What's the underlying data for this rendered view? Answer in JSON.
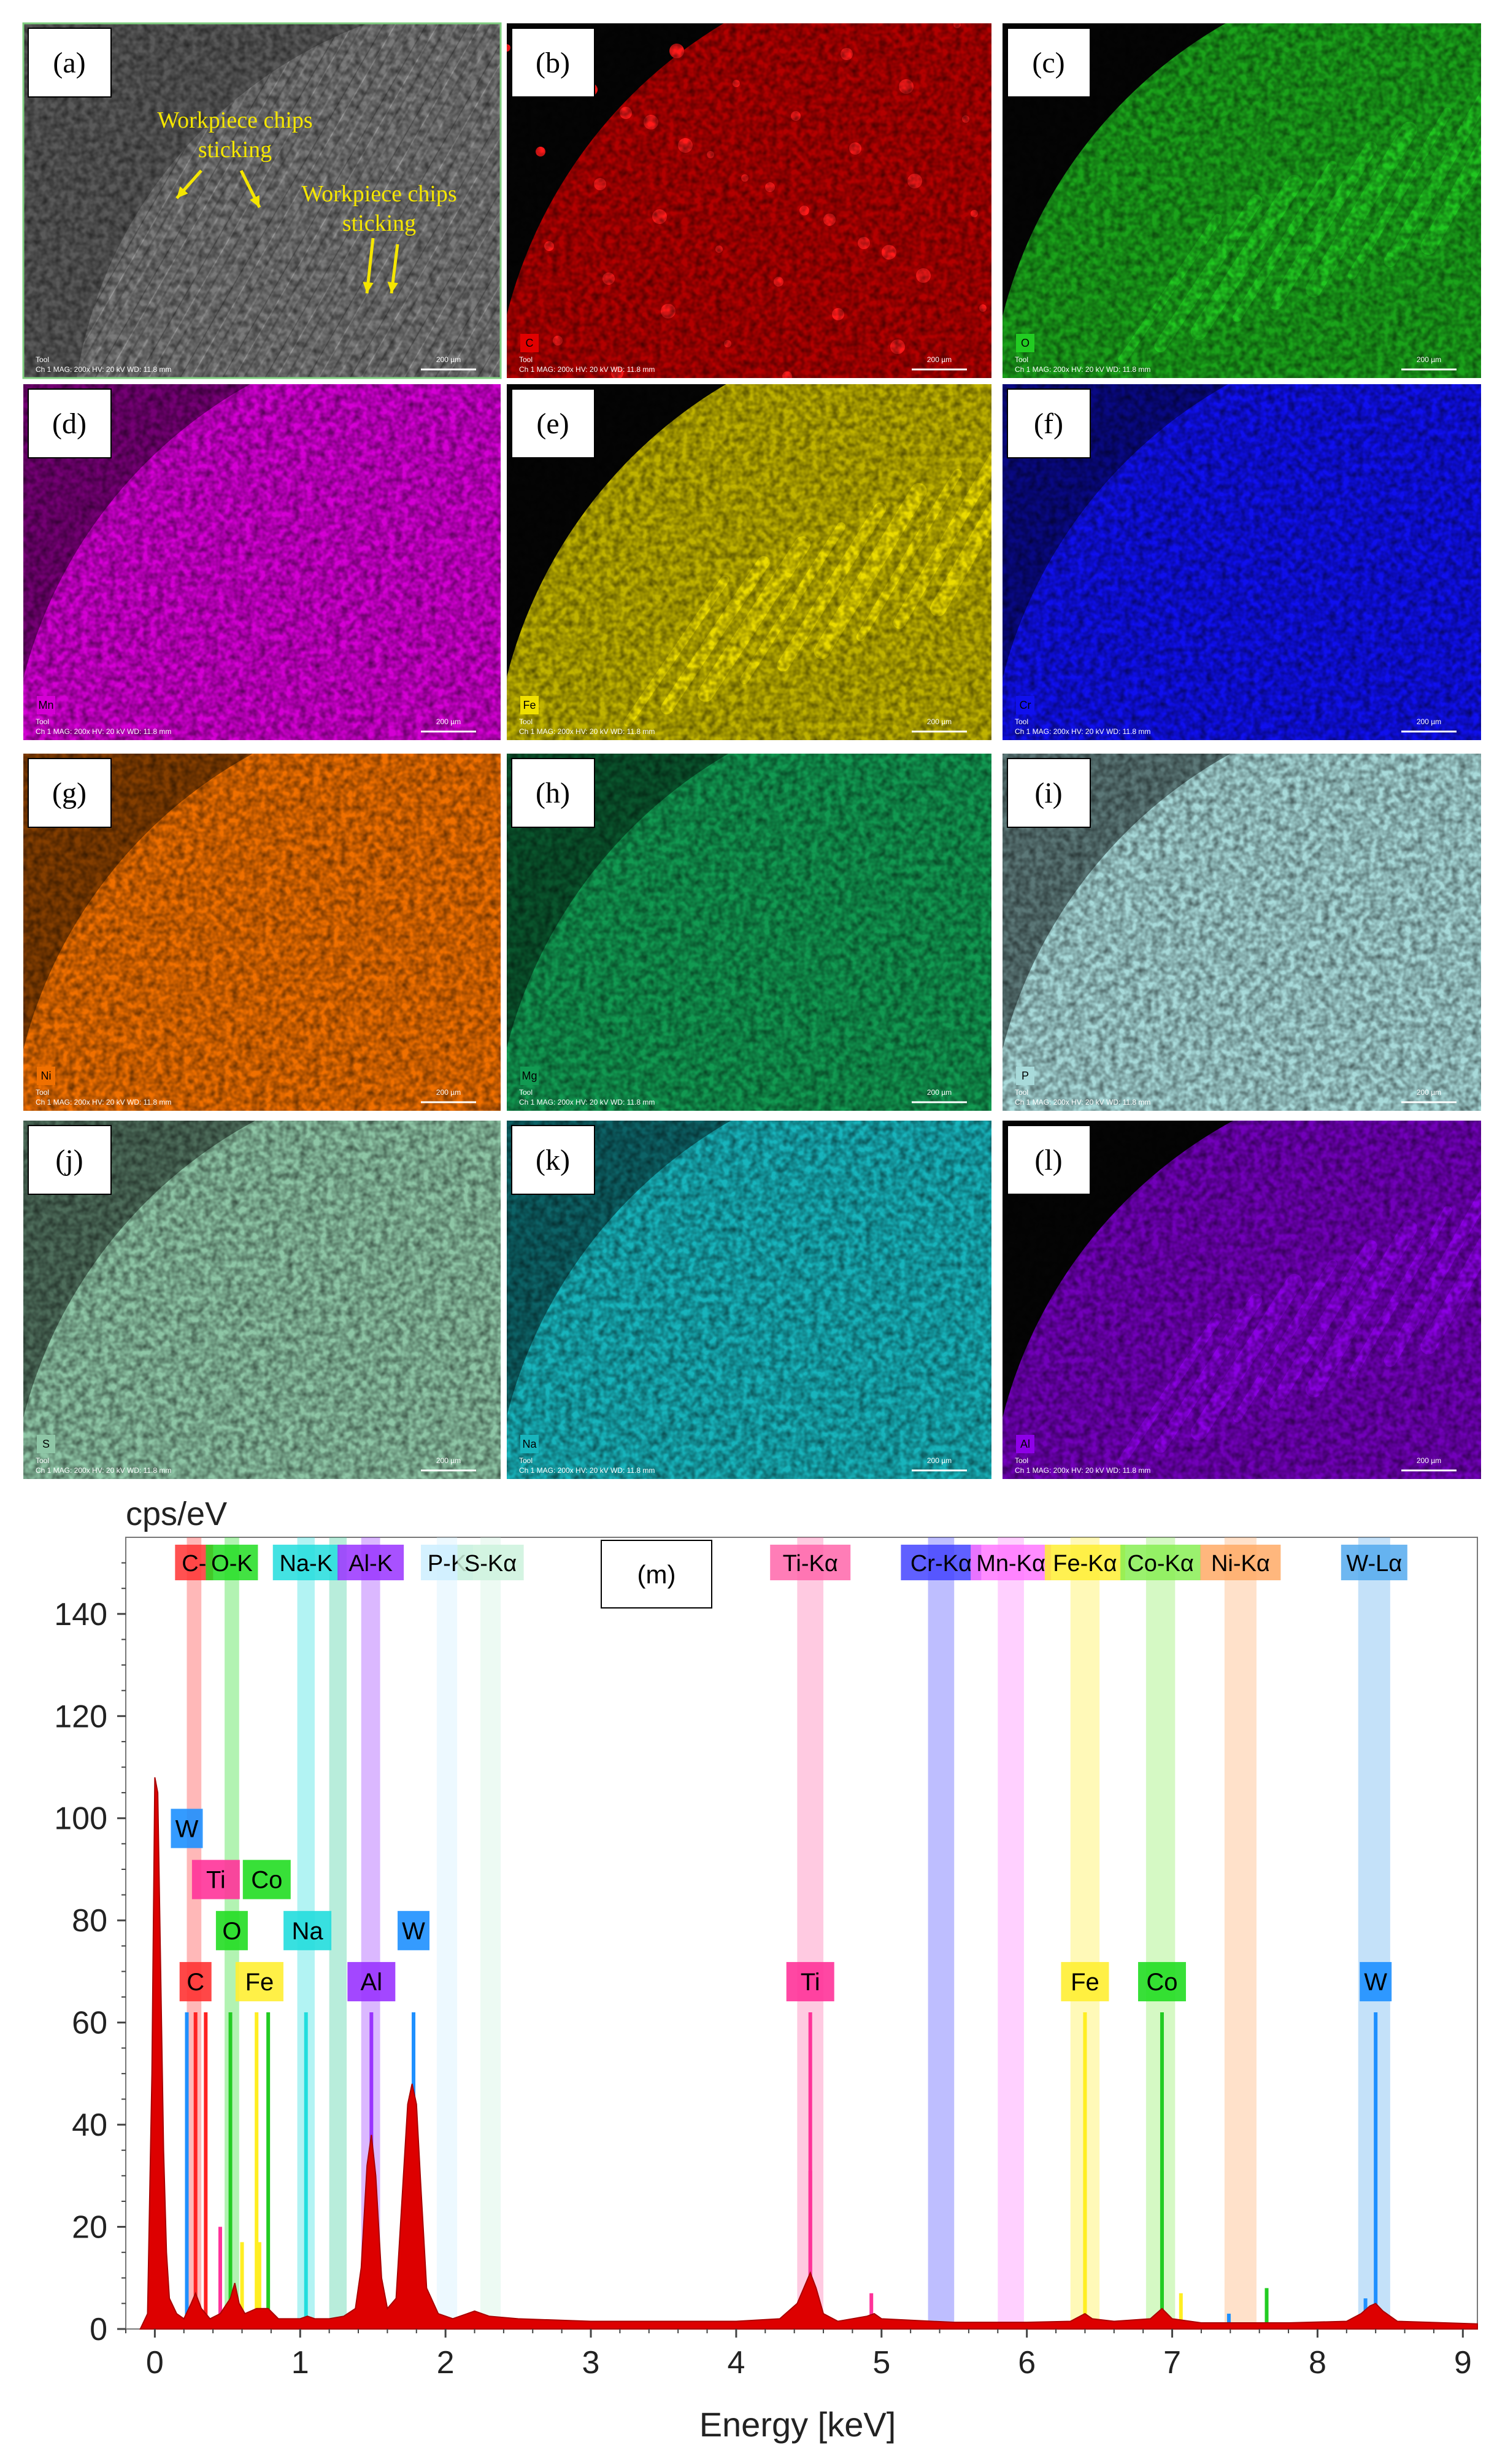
{
  "panels": [
    {
      "id": "a",
      "label": "(a)",
      "element": "",
      "base": "#6d6d6d",
      "annotations": [
        "Workpiece chips",
        "sticking",
        "Workpiece chips",
        "sticking"
      ]
    },
    {
      "id": "b",
      "label": "(b)",
      "element": "C",
      "base": "#e00000"
    },
    {
      "id": "c",
      "label": "(c)",
      "element": "O",
      "base": "#22cc22"
    },
    {
      "id": "d",
      "label": "(d)",
      "element": "Mn",
      "base": "#d400d4"
    },
    {
      "id": "e",
      "label": "(e)",
      "element": "Fe",
      "base": "#f0e000"
    },
    {
      "id": "f",
      "label": "(f)",
      "element": "Cr",
      "base": "#1010ee"
    },
    {
      "id": "g",
      "label": "(g)",
      "element": "Ni",
      "base": "#f07000"
    },
    {
      "id": "h",
      "label": "(h)",
      "element": "Mg",
      "base": "#129a52"
    },
    {
      "id": "i",
      "label": "(i)",
      "element": "P",
      "base": "#a8dada"
    },
    {
      "id": "j",
      "label": "(j)",
      "element": "S",
      "base": "#8ec6a6"
    },
    {
      "id": "k",
      "label": "(k)",
      "element": "Na",
      "base": "#18b4bc"
    },
    {
      "id": "l",
      "label": "(l)",
      "element": "Al",
      "base": "#8e00e8"
    }
  ],
  "map_footer": {
    "tool": "Tool",
    "info": "Ch 1    MAG: 200x    HV: 20 kV    WD: 11.8 mm",
    "scale": "200 µm"
  },
  "chart_data": {
    "type": "line",
    "panel_label": "(m)",
    "ylabel": "cps/eV",
    "xlabel": "Energy [keV]",
    "xlim": [
      -0.2,
      9.1
    ],
    "ylim": [
      0,
      155
    ],
    "xticks": [
      0,
      1,
      2,
      3,
      4,
      5,
      6,
      7,
      8,
      9
    ],
    "yticks": [
      0,
      20,
      40,
      60,
      80,
      100,
      120,
      140
    ],
    "spectrum": [
      [
        -0.1,
        0
      ],
      [
        -0.05,
        3
      ],
      [
        -0.02,
        50
      ],
      [
        0,
        108
      ],
      [
        0.02,
        105
      ],
      [
        0.04,
        70
      ],
      [
        0.06,
        35
      ],
      [
        0.08,
        15
      ],
      [
        0.1,
        6
      ],
      [
        0.15,
        3
      ],
      [
        0.2,
        2
      ],
      [
        0.25,
        5
      ],
      [
        0.28,
        7
      ],
      [
        0.32,
        4
      ],
      [
        0.38,
        2
      ],
      [
        0.45,
        3
      ],
      [
        0.52,
        6
      ],
      [
        0.55,
        9
      ],
      [
        0.58,
        5
      ],
      [
        0.62,
        3
      ],
      [
        0.7,
        4
      ],
      [
        0.78,
        4
      ],
      [
        0.85,
        2
      ],
      [
        1.0,
        2
      ],
      [
        1.05,
        2.5
      ],
      [
        1.1,
        2
      ],
      [
        1.2,
        2
      ],
      [
        1.3,
        2.5
      ],
      [
        1.38,
        4
      ],
      [
        1.42,
        12
      ],
      [
        1.46,
        32
      ],
      [
        1.49,
        38
      ],
      [
        1.52,
        30
      ],
      [
        1.56,
        10
      ],
      [
        1.6,
        4
      ],
      [
        1.66,
        6
      ],
      [
        1.7,
        25
      ],
      [
        1.74,
        44
      ],
      [
        1.77,
        48
      ],
      [
        1.8,
        44
      ],
      [
        1.83,
        28
      ],
      [
        1.87,
        8
      ],
      [
        1.95,
        3
      ],
      [
        2.05,
        2
      ],
      [
        2.15,
        3
      ],
      [
        2.2,
        3.5
      ],
      [
        2.3,
        2.5
      ],
      [
        2.5,
        2
      ],
      [
        3,
        1.5
      ],
      [
        3.5,
        1.5
      ],
      [
        4,
        1.5
      ],
      [
        4.3,
        2
      ],
      [
        4.42,
        5
      ],
      [
        4.48,
        9
      ],
      [
        4.51,
        11
      ],
      [
        4.55,
        8
      ],
      [
        4.6,
        3
      ],
      [
        4.7,
        1.5
      ],
      [
        4.9,
        2.5
      ],
      [
        4.95,
        3
      ],
      [
        5,
        2
      ],
      [
        5.5,
        1.3
      ],
      [
        6,
        1.3
      ],
      [
        6.3,
        1.5
      ],
      [
        6.4,
        3
      ],
      [
        6.45,
        2
      ],
      [
        6.6,
        1.5
      ],
      [
        6.85,
        2
      ],
      [
        6.93,
        4
      ],
      [
        7.0,
        2
      ],
      [
        7.2,
        1.2
      ],
      [
        7.8,
        1.2
      ],
      [
        8.2,
        1.5
      ],
      [
        8.3,
        3
      ],
      [
        8.36,
        4.5
      ],
      [
        8.4,
        5
      ],
      [
        8.45,
        3.5
      ],
      [
        8.55,
        1.5
      ],
      [
        9.1,
        1
      ]
    ],
    "element_bands": [
      {
        "label": "C-",
        "x0": 0.22,
        "x1": 0.32,
        "color": "#ff3333"
      },
      {
        "label": "O-K",
        "x0": 0.48,
        "x1": 0.58,
        "color": "#22dd22"
      },
      {
        "label": "Na-K",
        "x0": 0.98,
        "x1": 1.1,
        "color": "#22dddd"
      },
      {
        "label": "",
        "x0": 1.2,
        "x1": 1.32,
        "color": "#33cc99"
      },
      {
        "label": "Al-K",
        "x0": 1.42,
        "x1": 1.55,
        "color": "#9933ff"
      },
      {
        "label": "P-K",
        "x0": 1.94,
        "x1": 2.08,
        "color": "#cceeff"
      },
      {
        "label": "S-Kα",
        "x0": 2.24,
        "x1": 2.38,
        "color": "#ccf2dd"
      },
      {
        "label": "Ti-Kα",
        "x0": 4.42,
        "x1": 4.6,
        "color": "#ff66aa"
      },
      {
        "label": "Cr-Kα",
        "x0": 5.32,
        "x1": 5.5,
        "color": "#4444ff"
      },
      {
        "label": "Mn-Kα",
        "x0": 5.8,
        "x1": 5.98,
        "color": "#ff77ff"
      },
      {
        "label": "Fe-Kα",
        "x0": 6.3,
        "x1": 6.5,
        "color": "#ffee33"
      },
      {
        "label": "Co-Kα",
        "x0": 6.82,
        "x1": 7.02,
        "color": "#88ee55"
      },
      {
        "label": "Ni-Kα",
        "x0": 7.36,
        "x1": 7.58,
        "color": "#ffaa66"
      },
      {
        "label": "W-Lα",
        "x0": 8.28,
        "x1": 8.5,
        "color": "#55aaee"
      }
    ],
    "line_markers": [
      {
        "x": 0.22,
        "h": 62,
        "color": "#1e90ff"
      },
      {
        "x": 0.28,
        "h": 62,
        "color": "#ff2222"
      },
      {
        "x": 0.35,
        "h": 62,
        "color": "#ff2222"
      },
      {
        "x": 0.45,
        "h": 20,
        "color": "#ff3399"
      },
      {
        "x": 0.52,
        "h": 62,
        "color": "#22cc22"
      },
      {
        "x": 0.6,
        "h": 17,
        "color": "#ffee22"
      },
      {
        "x": 0.7,
        "h": 62,
        "color": "#ffee22"
      },
      {
        "x": 0.72,
        "h": 17,
        "color": "#ffee22"
      },
      {
        "x": 0.78,
        "h": 62,
        "color": "#22cc22"
      },
      {
        "x": 1.04,
        "h": 62,
        "color": "#22dddd"
      },
      {
        "x": 1.49,
        "h": 62,
        "color": "#9933ff"
      },
      {
        "x": 1.78,
        "h": 62,
        "color": "#1e90ff"
      },
      {
        "x": 1.8,
        "h": 28,
        "color": "#1e90ff"
      },
      {
        "x": 4.51,
        "h": 62,
        "color": "#ff3399"
      },
      {
        "x": 4.51,
        "h": 31,
        "color": "#ff3399"
      },
      {
        "x": 4.93,
        "h": 7,
        "color": "#ff3399"
      },
      {
        "x": 6.4,
        "h": 62,
        "color": "#ffee22"
      },
      {
        "x": 6.4,
        "h": 31,
        "color": "#ffee22"
      },
      {
        "x": 6.93,
        "h": 62,
        "color": "#22cc22"
      },
      {
        "x": 6.93,
        "h": 31,
        "color": "#22cc22"
      },
      {
        "x": 7.06,
        "h": 7,
        "color": "#ffee22"
      },
      {
        "x": 7.39,
        "h": 3,
        "color": "#1e90ff"
      },
      {
        "x": 7.65,
        "h": 8,
        "color": "#22cc22"
      },
      {
        "x": 8.4,
        "h": 62,
        "color": "#1e90ff"
      },
      {
        "x": 8.33,
        "h": 6,
        "color": "#1e90ff"
      }
    ],
    "peak_labels": [
      {
        "label": "W",
        "x": 0.22,
        "y": 98,
        "color": "#1e90ff"
      },
      {
        "label": "Ti",
        "x": 0.42,
        "y": 88,
        "color": "#ff3399"
      },
      {
        "label": "Co",
        "x": 0.77,
        "y": 88,
        "color": "#22dd22"
      },
      {
        "label": "O",
        "x": 0.53,
        "y": 78,
        "color": "#22dd22"
      },
      {
        "label": "Na",
        "x": 1.05,
        "y": 78,
        "color": "#22dddd"
      },
      {
        "label": "W",
        "x": 1.78,
        "y": 78,
        "color": "#1e90ff"
      },
      {
        "label": "C",
        "x": 0.28,
        "y": 68,
        "color": "#ff3333"
      },
      {
        "label": "Fe",
        "x": 0.72,
        "y": 68,
        "color": "#ffee33"
      },
      {
        "label": "Al",
        "x": 1.49,
        "y": 68,
        "color": "#9933ff"
      },
      {
        "label": "Ti",
        "x": 4.51,
        "y": 68,
        "color": "#ff3399"
      },
      {
        "label": "Fe",
        "x": 6.4,
        "y": 68,
        "color": "#ffee33"
      },
      {
        "label": "Co",
        "x": 6.93,
        "y": 68,
        "color": "#22dd22"
      },
      {
        "label": "W",
        "x": 8.4,
        "y": 68,
        "color": "#1e90ff"
      }
    ]
  }
}
